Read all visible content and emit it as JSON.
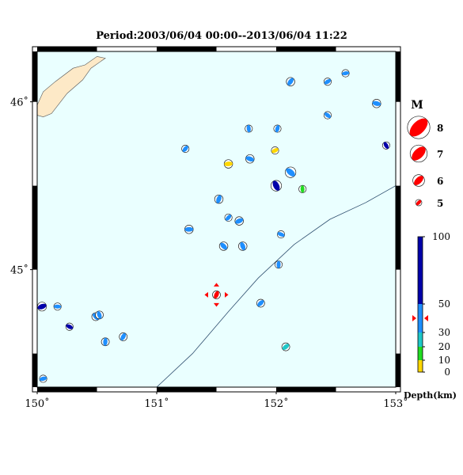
{
  "title": "Period:2003/06/04 00:00--2013/06/04 11:22",
  "map": {
    "lon_range": [
      150,
      153
    ],
    "lat_range": [
      44.3,
      46.3
    ],
    "lon_ticks": [
      {
        "lon": 150,
        "label": "150˚"
      },
      {
        "lon": 151,
        "label": "151˚"
      },
      {
        "lon": 152,
        "label": "152˚"
      },
      {
        "lon": 153,
        "label": "153˚"
      }
    ],
    "lat_ticks": [
      {
        "lat": 45,
        "label": "45˚"
      },
      {
        "lat": 46,
        "label": "46˚"
      }
    ],
    "colors": {
      "sea": "#eaffff",
      "land": "#fde9c7",
      "trench": "#2f4f6f",
      "frame": "#000000"
    },
    "trench_line": [
      [
        151.0,
        44.3
      ],
      [
        151.3,
        44.5
      ],
      [
        151.6,
        44.75
      ],
      [
        151.85,
        44.95
      ],
      [
        152.15,
        45.15
      ],
      [
        152.45,
        45.3
      ],
      [
        152.75,
        45.4
      ],
      [
        153.0,
        45.5
      ]
    ],
    "coast": [
      [
        150.0,
        45.98
      ],
      [
        150.05,
        46.06
      ],
      [
        150.15,
        46.12
      ],
      [
        150.3,
        46.2
      ],
      [
        150.4,
        46.22
      ],
      [
        150.5,
        46.27
      ],
      [
        150.57,
        46.26
      ],
      [
        150.45,
        46.2
      ],
      [
        150.38,
        46.13
      ],
      [
        150.25,
        46.05
      ],
      [
        150.12,
        45.93
      ],
      [
        150.05,
        45.91
      ],
      [
        150.0,
        45.92
      ]
    ]
  },
  "events": [
    {
      "lon": 152.12,
      "lat": 46.12,
      "mag": 5.4,
      "depth": 40
    },
    {
      "lon": 152.43,
      "lat": 46.12,
      "mag": 5.2,
      "depth": 40
    },
    {
      "lon": 152.58,
      "lat": 46.17,
      "mag": 5.2,
      "depth": 35
    },
    {
      "lon": 152.84,
      "lat": 45.99,
      "mag": 5.4,
      "depth": 40
    },
    {
      "lon": 152.43,
      "lat": 45.92,
      "mag": 5.2,
      "depth": 40
    },
    {
      "lon": 152.92,
      "lat": 45.74,
      "mag": 5.2,
      "depth": 60
    },
    {
      "lon": 151.77,
      "lat": 45.84,
      "mag": 5.2,
      "depth": 35
    },
    {
      "lon": 152.01,
      "lat": 45.84,
      "mag": 5.2,
      "depth": 40
    },
    {
      "lon": 151.24,
      "lat": 45.72,
      "mag": 5.2,
      "depth": 40
    },
    {
      "lon": 151.99,
      "lat": 45.71,
      "mag": 5.2,
      "depth": 5
    },
    {
      "lon": 151.6,
      "lat": 45.63,
      "mag": 5.4,
      "depth": 5
    },
    {
      "lon": 151.78,
      "lat": 45.66,
      "mag": 5.4,
      "depth": 35
    },
    {
      "lon": 152.12,
      "lat": 45.58,
      "mag": 5.8,
      "depth": 40
    },
    {
      "lon": 152.0,
      "lat": 45.5,
      "mag": 5.8,
      "depth": 80
    },
    {
      "lon": 152.22,
      "lat": 45.48,
      "mag": 5.2,
      "depth": 15
    },
    {
      "lon": 151.52,
      "lat": 45.42,
      "mag": 5.4,
      "depth": 40
    },
    {
      "lon": 151.6,
      "lat": 45.31,
      "mag": 5.2,
      "depth": 35
    },
    {
      "lon": 151.69,
      "lat": 45.29,
      "mag": 5.4,
      "depth": 40
    },
    {
      "lon": 151.27,
      "lat": 45.24,
      "mag": 5.4,
      "depth": 40
    },
    {
      "lon": 152.04,
      "lat": 45.21,
      "mag": 5.2,
      "depth": 40
    },
    {
      "lon": 151.56,
      "lat": 45.14,
      "mag": 5.4,
      "depth": 40
    },
    {
      "lon": 151.72,
      "lat": 45.14,
      "mag": 5.4,
      "depth": 40
    },
    {
      "lon": 152.02,
      "lat": 45.03,
      "mag": 5.2,
      "depth": 40
    },
    {
      "lon": 151.5,
      "lat": 44.85,
      "mag": 5.3,
      "depth": 40,
      "latest": true
    },
    {
      "lon": 151.87,
      "lat": 44.8,
      "mag": 5.3,
      "depth": 40
    },
    {
      "lon": 150.04,
      "lat": 44.78,
      "mag": 5.5,
      "depth": 70
    },
    {
      "lon": 150.17,
      "lat": 44.78,
      "mag": 5.2,
      "depth": 40
    },
    {
      "lon": 150.27,
      "lat": 44.66,
      "mag": 5.2,
      "depth": 60
    },
    {
      "lon": 150.49,
      "lat": 44.72,
      "mag": 5.3,
      "depth": 35
    },
    {
      "lon": 150.52,
      "lat": 44.73,
      "mag": 5.3,
      "depth": 35
    },
    {
      "lon": 150.57,
      "lat": 44.57,
      "mag": 5.3,
      "depth": 35
    },
    {
      "lon": 150.72,
      "lat": 44.6,
      "mag": 5.3,
      "depth": 35
    },
    {
      "lon": 152.08,
      "lat": 44.54,
      "mag": 5.3,
      "depth": 20
    },
    {
      "lon": 150.05,
      "lat": 44.35,
      "mag": 5.2,
      "depth": 35
    }
  ],
  "magnitude_legend": {
    "label": "M",
    "items": [
      {
        "mag": 8,
        "label": "8"
      },
      {
        "mag": 7,
        "label": "7"
      },
      {
        "mag": 6,
        "label": "6"
      },
      {
        "mag": 5,
        "label": "5"
      }
    ]
  },
  "depth_scale": {
    "label": "Depth(km)",
    "ticks": [
      {
        "depth": 100,
        "label": "100"
      },
      {
        "depth": 50,
        "label": "50"
      },
      {
        "depth": 30,
        "label": "30"
      },
      {
        "depth": 20,
        "label": "20"
      },
      {
        "depth": 10,
        "label": "10"
      },
      {
        "depth": 0,
        "label": "0"
      }
    ],
    "bands": [
      {
        "from": 0,
        "to": 10,
        "color": "#ffd700"
      },
      {
        "from": 10,
        "to": 20,
        "color": "#22dd22"
      },
      {
        "from": 20,
        "to": 30,
        "color": "#1ec8c8"
      },
      {
        "from": 30,
        "to": 50,
        "color": "#1e8fff"
      },
      {
        "from": 50,
        "to": 100,
        "color": "#0000aa"
      }
    ],
    "marker_depth": 40,
    "latest_color": "#ff0000"
  }
}
